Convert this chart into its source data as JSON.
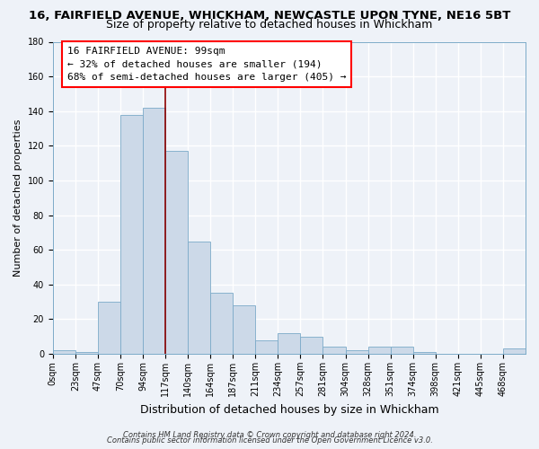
{
  "title1": "16, FAIRFIELD AVENUE, WHICKHAM, NEWCASTLE UPON TYNE, NE16 5BT",
  "title2": "Size of property relative to detached houses in Whickham",
  "xlabel": "Distribution of detached houses by size in Whickham",
  "ylabel": "Number of detached properties",
  "bar_color": "#ccd9e8",
  "bar_edge_color": "#7baac8",
  "categories": [
    "0sqm",
    "23sqm",
    "47sqm",
    "70sqm",
    "94sqm",
    "117sqm",
    "140sqm",
    "164sqm",
    "187sqm",
    "211sqm",
    "234sqm",
    "257sqm",
    "281sqm",
    "304sqm",
    "328sqm",
    "351sqm",
    "374sqm",
    "398sqm",
    "421sqm",
    "445sqm",
    "468sqm"
  ],
  "values": [
    2,
    1,
    30,
    138,
    142,
    117,
    65,
    35,
    28,
    8,
    12,
    10,
    4,
    2,
    4,
    4,
    1,
    0,
    0,
    0,
    3
  ],
  "ylim": [
    0,
    180
  ],
  "yticks": [
    0,
    20,
    40,
    60,
    80,
    100,
    120,
    140,
    160,
    180
  ],
  "vline_x_index": 5,
  "annotation_title": "16 FAIRFIELD AVENUE: 99sqm",
  "annotation_line1": "← 32% of detached houses are smaller (194)",
  "annotation_line2": "68% of semi-detached houses are larger (405) →",
  "footer1": "Contains HM Land Registry data © Crown copyright and database right 2024.",
  "footer2": "Contains public sector information licensed under the Open Government Licence v3.0.",
  "bg_color": "#eef2f8",
  "grid_color": "#ffffff",
  "title1_fontsize": 9.5,
  "title2_fontsize": 9,
  "xlabel_fontsize": 9,
  "ylabel_fontsize": 8,
  "tick_fontsize": 7,
  "footer_fontsize": 6,
  "ann_fontsize": 8
}
